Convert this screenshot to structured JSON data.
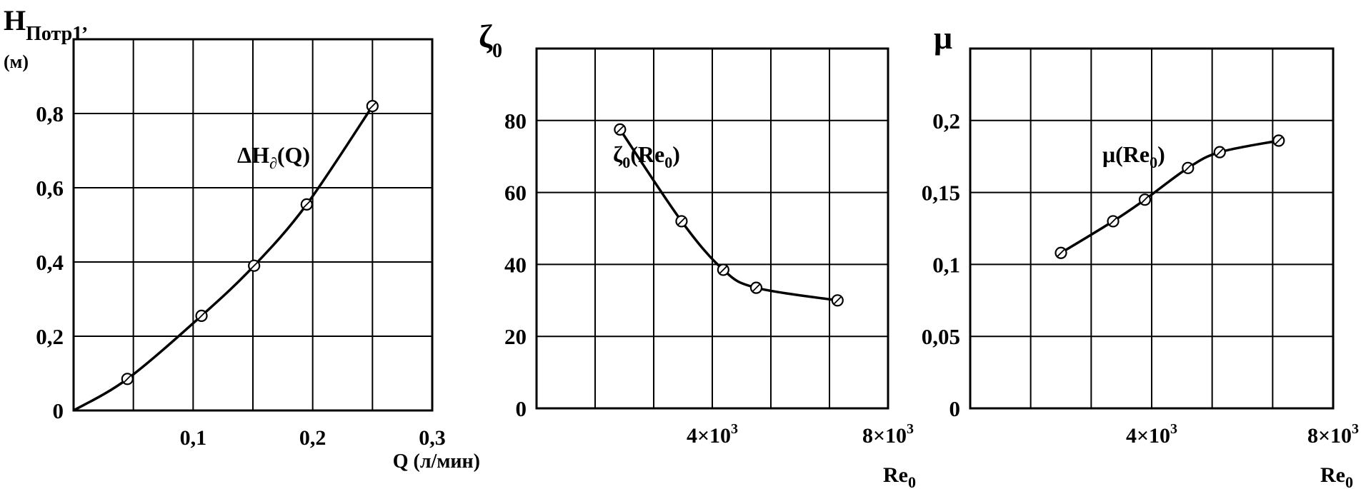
{
  "chart_data": [
    {
      "type": "line",
      "ylabel": "H",
      "ylabel_sub": "Потр1",
      "ylabel_suffix": ",",
      "yunit": "(м)",
      "xlabel": "Q (л/мин)",
      "xlim": [
        0,
        0.3
      ],
      "ylim": [
        0,
        1.0
      ],
      "grid": true,
      "xticks": [
        {
          "v": 0.1,
          "label": "0,1"
        },
        {
          "v": 0.2,
          "label": "0,2"
        },
        {
          "v": 0.3,
          "label": "0,3"
        }
      ],
      "yticks": [
        {
          "v": 0,
          "label": "0"
        },
        {
          "v": 0.2,
          "label": "0,2"
        },
        {
          "v": 0.4,
          "label": "0,4"
        },
        {
          "v": 0.6,
          "label": "0,6"
        },
        {
          "v": 0.8,
          "label": "0,8"
        }
      ],
      "xgrid": [
        0.05,
        0.1,
        0.15,
        0.2,
        0.25
      ],
      "ygrid": [
        0.2,
        0.4,
        0.6,
        0.8
      ],
      "series": [
        {
          "name_parts": [
            "ΔH",
            "∂",
            "(Q)"
          ],
          "points": [
            [
              0.045,
              0.085
            ],
            [
              0.107,
              0.255
            ],
            [
              0.151,
              0.39
            ],
            [
              0.195,
              0.555
            ],
            [
              0.25,
              0.82
            ]
          ],
          "curve": [
            [
              0.0,
              0.0
            ],
            [
              0.045,
              0.085
            ],
            [
              0.107,
              0.255
            ],
            [
              0.151,
              0.39
            ],
            [
              0.195,
              0.555
            ],
            [
              0.25,
              0.82
            ]
          ]
        }
      ]
    },
    {
      "type": "line",
      "ylabel": "ζ",
      "ylabel_sub": "0",
      "xlabel": "Re",
      "xlabel_sub": "0",
      "xlim": [
        0,
        8000
      ],
      "ylim": [
        0,
        100
      ],
      "grid": true,
      "xticks": [
        {
          "v": 4000,
          "label": "4×10",
          "sup": "3"
        },
        {
          "v": 8000,
          "label": "8×10",
          "sup": "3"
        }
      ],
      "yticks": [
        {
          "v": 0,
          "label": "0"
        },
        {
          "v": 20,
          "label": "20"
        },
        {
          "v": 40,
          "label": "40"
        },
        {
          "v": 60,
          "label": "60"
        },
        {
          "v": 80,
          "label": "80"
        }
      ],
      "xgrid": [
        1333,
        2667,
        4000,
        5333,
        6667
      ],
      "ygrid": [
        20,
        40,
        60,
        80
      ],
      "series": [
        {
          "name_parts": [
            "ζ",
            "0",
            "(Re",
            "0",
            ")"
          ],
          "points": [
            [
              1900,
              77.5
            ],
            [
              3300,
              52
            ],
            [
              4250,
              38.5
            ],
            [
              5000,
              33.5
            ],
            [
              6850,
              30
            ]
          ],
          "curve": [
            [
              1900,
              77.5
            ],
            [
              3300,
              52
            ],
            [
              4250,
              38.5
            ],
            [
              5000,
              33.5
            ],
            [
              6850,
              30
            ]
          ]
        }
      ]
    },
    {
      "type": "line",
      "ylabel": "μ",
      "xlabel": "Re",
      "xlabel_sub": "0",
      "xlim": [
        0,
        8000
      ],
      "ylim": [
        0,
        0.25
      ],
      "grid": true,
      "xticks": [
        {
          "v": 4000,
          "label": "4×10",
          "sup": "3"
        },
        {
          "v": 8000,
          "label": "8×10",
          "sup": "3"
        }
      ],
      "yticks": [
        {
          "v": 0,
          "label": "0"
        },
        {
          "v": 0.05,
          "label": "0,05"
        },
        {
          "v": 0.1,
          "label": "0,1"
        },
        {
          "v": 0.15,
          "label": "0,15"
        },
        {
          "v": 0.2,
          "label": "0,2"
        }
      ],
      "xgrid": [
        1333,
        2667,
        4000,
        5333,
        6667
      ],
      "ygrid": [
        0.05,
        0.1,
        0.15,
        0.2
      ],
      "series": [
        {
          "name_parts": [
            "μ",
            "(Re",
            "0",
            ")"
          ],
          "points": [
            [
              2000,
              0.108
            ],
            [
              3150,
              0.13
            ],
            [
              3850,
              0.145
            ],
            [
              4800,
              0.167
            ],
            [
              5500,
              0.178
            ],
            [
              6800,
              0.186
            ]
          ],
          "curve": [
            [
              2000,
              0.108
            ],
            [
              3150,
              0.13
            ],
            [
              3850,
              0.145
            ],
            [
              4800,
              0.167
            ],
            [
              5500,
              0.178
            ],
            [
              6800,
              0.186
            ]
          ]
        }
      ]
    }
  ]
}
